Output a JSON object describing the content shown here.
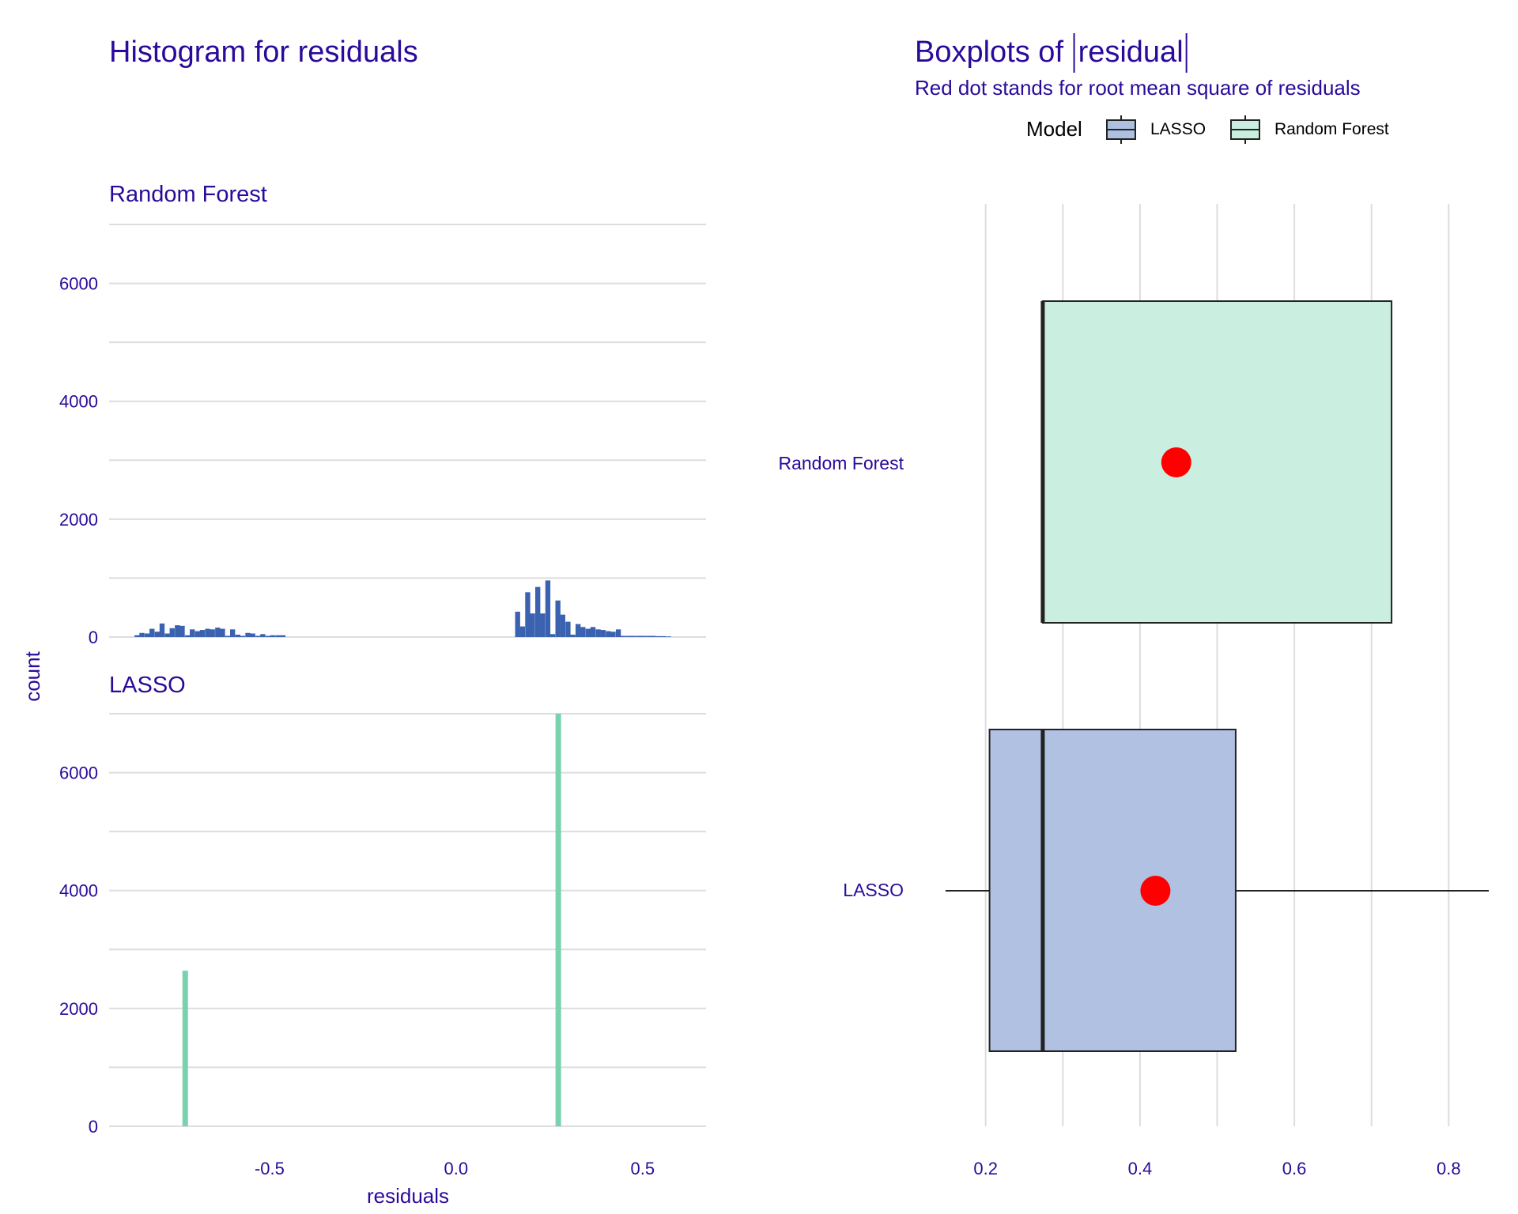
{
  "colors": {
    "text": "#2a0a9a",
    "grid": "#dddddd",
    "rf_hist": "#3a62b0",
    "lasso_hist": "#78d2ad",
    "lasso_box": "#aec0e0",
    "rf_box": "#c9eedf",
    "rms_dot": "#ff0000"
  },
  "chart_data": [
    {
      "type": "bar",
      "title": "Histogram for residuals",
      "xlabel": "residuals",
      "ylabel": "count",
      "xlim": [
        -0.93,
        0.67
      ],
      "ylim": [
        0,
        7000
      ],
      "x_ticks": [
        -0.5,
        0.0,
        0.5
      ],
      "x_tick_labels": [
        "-0.5",
        "0.0",
        "0.5"
      ],
      "y_ticks": [
        0,
        2000,
        4000,
        6000
      ],
      "y_tick_labels": [
        "0",
        "2000",
        "4000",
        "6000"
      ],
      "bin_width": 0.0135,
      "facets": [
        {
          "name": "Random Forest",
          "color_key": "rf_hist",
          "bins": [
            {
              "x": -0.855,
              "count": 30
            },
            {
              "x": -0.842,
              "count": 70
            },
            {
              "x": -0.828,
              "count": 60
            },
            {
              "x": -0.815,
              "count": 140
            },
            {
              "x": -0.801,
              "count": 90
            },
            {
              "x": -0.788,
              "count": 230
            },
            {
              "x": -0.774,
              "count": 60
            },
            {
              "x": -0.761,
              "count": 150
            },
            {
              "x": -0.747,
              "count": 200
            },
            {
              "x": -0.734,
              "count": 190
            },
            {
              "x": -0.72,
              "count": 30
            },
            {
              "x": -0.707,
              "count": 130
            },
            {
              "x": -0.693,
              "count": 100
            },
            {
              "x": -0.68,
              "count": 120
            },
            {
              "x": -0.666,
              "count": 140
            },
            {
              "x": -0.653,
              "count": 130
            },
            {
              "x": -0.639,
              "count": 160
            },
            {
              "x": -0.626,
              "count": 140
            },
            {
              "x": -0.612,
              "count": 20
            },
            {
              "x": -0.599,
              "count": 130
            },
            {
              "x": -0.585,
              "count": 40
            },
            {
              "x": -0.572,
              "count": 20
            },
            {
              "x": -0.558,
              "count": 70
            },
            {
              "x": -0.545,
              "count": 60
            },
            {
              "x": -0.531,
              "count": 20
            },
            {
              "x": -0.518,
              "count": 50
            },
            {
              "x": -0.504,
              "count": 20
            },
            {
              "x": -0.491,
              "count": 30
            },
            {
              "x": -0.477,
              "count": 30
            },
            {
              "x": -0.464,
              "count": 30
            },
            {
              "x": 0.165,
              "count": 430
            },
            {
              "x": 0.178,
              "count": 180
            },
            {
              "x": 0.192,
              "count": 760
            },
            {
              "x": 0.205,
              "count": 400
            },
            {
              "x": 0.219,
              "count": 850
            },
            {
              "x": 0.232,
              "count": 400
            },
            {
              "x": 0.246,
              "count": 960
            },
            {
              "x": 0.259,
              "count": 50
            },
            {
              "x": 0.273,
              "count": 620
            },
            {
              "x": 0.286,
              "count": 380
            },
            {
              "x": 0.3,
              "count": 260
            },
            {
              "x": 0.313,
              "count": 40
            },
            {
              "x": 0.327,
              "count": 220
            },
            {
              "x": 0.34,
              "count": 170
            },
            {
              "x": 0.354,
              "count": 140
            },
            {
              "x": 0.367,
              "count": 170
            },
            {
              "x": 0.381,
              "count": 130
            },
            {
              "x": 0.394,
              "count": 120
            },
            {
              "x": 0.408,
              "count": 100
            },
            {
              "x": 0.421,
              "count": 90
            },
            {
              "x": 0.435,
              "count": 130
            },
            {
              "x": 0.448,
              "count": 20
            },
            {
              "x": 0.462,
              "count": 20
            },
            {
              "x": 0.475,
              "count": 20
            },
            {
              "x": 0.489,
              "count": 20
            },
            {
              "x": 0.502,
              "count": 20
            },
            {
              "x": 0.516,
              "count": 20
            },
            {
              "x": 0.529,
              "count": 20
            },
            {
              "x": 0.543,
              "count": 15
            },
            {
              "x": 0.556,
              "count": 15
            },
            {
              "x": 0.57,
              "count": 10
            }
          ]
        },
        {
          "name": "LASSO",
          "color_key": "lasso_hist",
          "bins": [
            {
              "x": -0.726,
              "count": 2640
            },
            {
              "x": 0.274,
              "count": 7000
            }
          ]
        }
      ]
    },
    {
      "type": "box",
      "title": "Boxplots of |residual|",
      "title_text": "Boxplots of ",
      "title_math": "residual",
      "subtitle": "Red dot stands for root mean square of residuals",
      "legend_title": "Model",
      "legend_placement": "top",
      "legend_entries": [
        {
          "name": "LASSO",
          "color_key": "lasso_box"
        },
        {
          "name": "Random Forest",
          "color_key": "rf_box"
        }
      ],
      "xlim": [
        0.145,
        0.855
      ],
      "x_ticks": [
        0.2,
        0.4,
        0.6,
        0.8
      ],
      "x_tick_labels": [
        "0.2",
        "0.4",
        "0.6",
        "0.8"
      ],
      "minor_ticks": [
        0.3,
        0.5,
        0.7
      ],
      "categories": [
        "Random Forest",
        "LASSO"
      ],
      "boxes": [
        {
          "name": "Random Forest",
          "color_key": "rf_box",
          "whisker_low": 0.274,
          "q1": 0.274,
          "median": 0.274,
          "q3": 0.726,
          "whisker_high": 0.726,
          "rms": 0.447
        },
        {
          "name": "LASSO",
          "color_key": "lasso_box",
          "whisker_low": 0.148,
          "q1": 0.205,
          "median": 0.274,
          "q3": 0.524,
          "whisker_high": 0.852,
          "rms": 0.42
        }
      ]
    }
  ]
}
